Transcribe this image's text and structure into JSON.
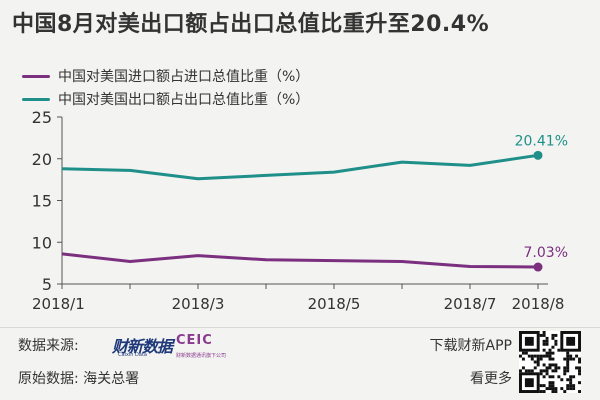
{
  "title": "中国8月对美出口额占出口总值比重升至20.4%",
  "legend": {
    "import_label": "中国对美国进口额占进口总值比重（%）",
    "export_label": "中国对美国出口额占出口总值比重（%）"
  },
  "colors": {
    "export": "#1f8f8a",
    "import": "#7b2f7f"
  },
  "footer": {
    "source_label": "数据来源:",
    "caixin_logo_text": "财新数据",
    "caixin_logo_sub": "Caixin Data",
    "ceic_logo_text": "CEIC",
    "ceic_logo_sub": "财新数据通讯旗下公司",
    "origin_label": "原始数据: 海关总署",
    "download_label": "下载财新APP",
    "more_label": "看更多"
  },
  "chart_data": {
    "type": "line",
    "x": [
      "2018/1",
      "2018/2",
      "2018/3",
      "2018/4",
      "2018/5",
      "2018/6",
      "2018/7",
      "2018/8"
    ],
    "xticks": [
      "2018/1",
      "2018/3",
      "2018/5",
      "2018/7",
      "2018/8"
    ],
    "ylim": [
      5,
      25
    ],
    "yticks": [
      5,
      10,
      15,
      20,
      25
    ],
    "grid": false,
    "legend_position": "top-left",
    "series": [
      {
        "name": "中国对美国进口额占进口总值比重（%）",
        "key": "import",
        "values": [
          8.6,
          7.7,
          8.4,
          7.9,
          7.8,
          7.7,
          7.1,
          7.03
        ],
        "end_label": "7.03%"
      },
      {
        "name": "中国对美国出口额占出口总值比重（%）",
        "key": "export",
        "values": [
          18.8,
          18.6,
          17.6,
          18.0,
          18.4,
          19.6,
          19.2,
          20.41
        ],
        "end_label": "20.41%"
      }
    ]
  }
}
